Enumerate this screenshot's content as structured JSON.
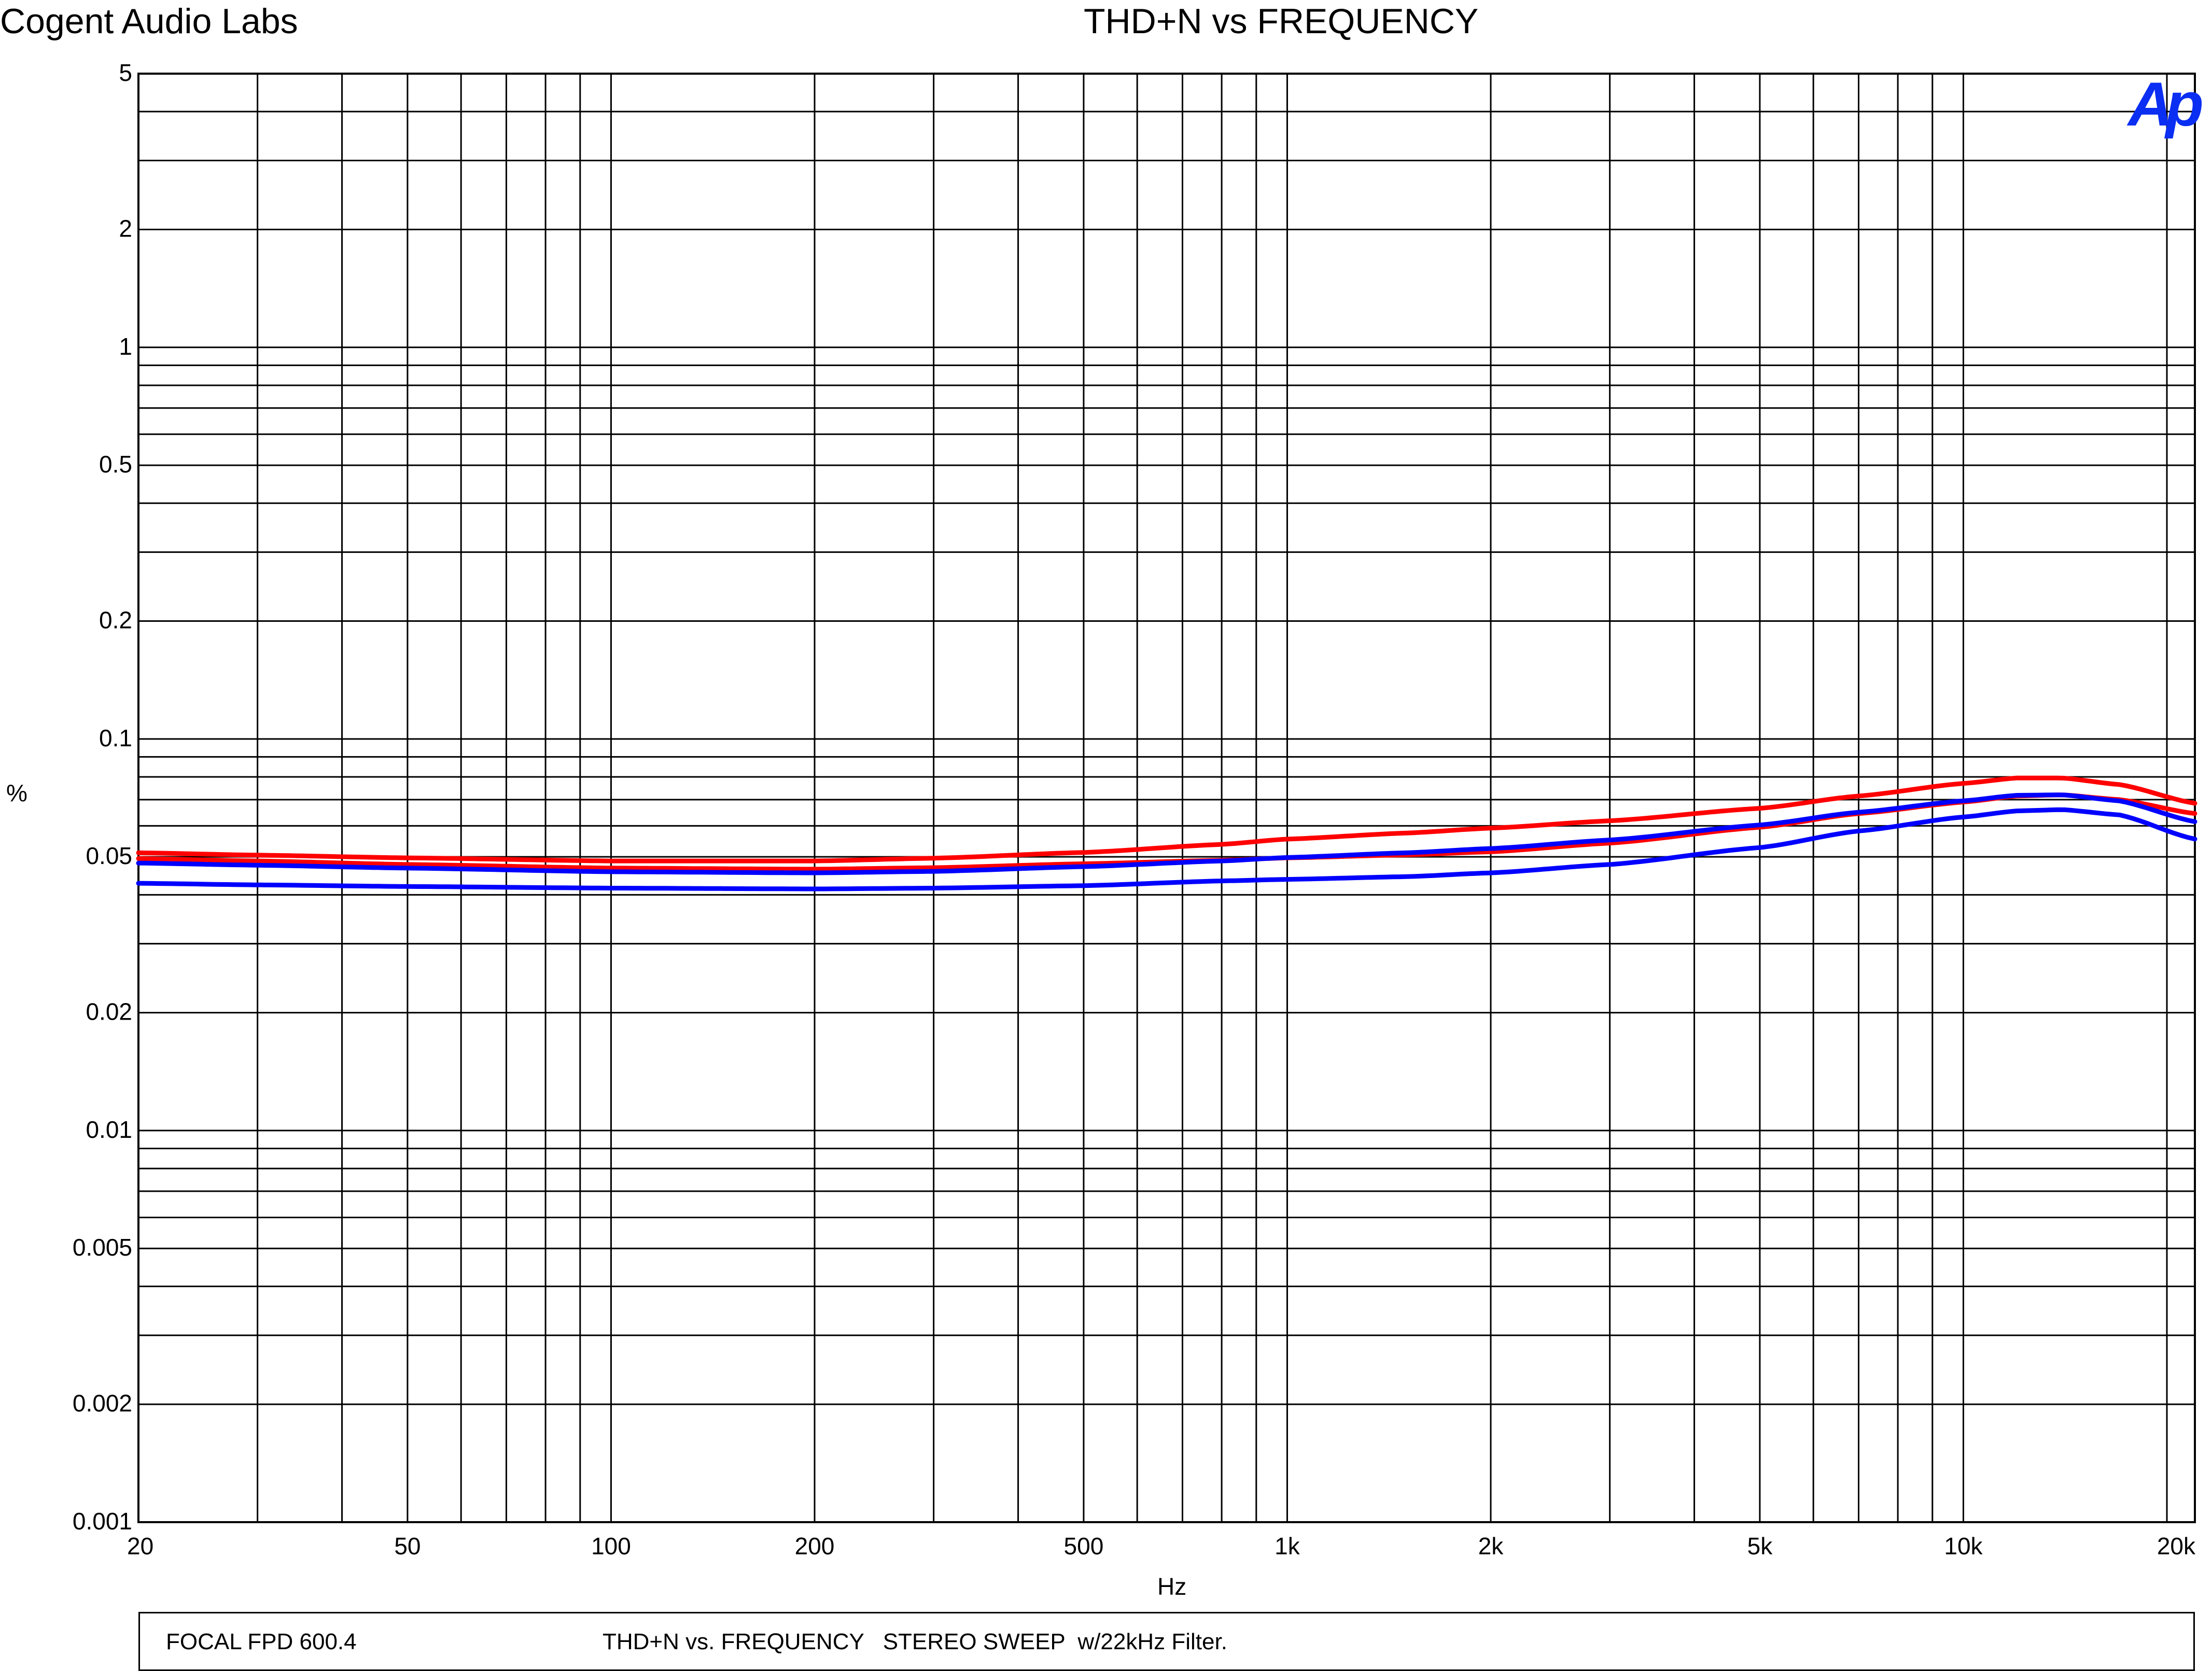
{
  "header": {
    "company": "Cogent Audio Labs",
    "title": "THD+N vs FREQUENCY"
  },
  "logo": {
    "text": "Ap",
    "color": "#0a2ef2"
  },
  "footer": {
    "device": "FOCAL FPD 600.4",
    "description": "THD+N vs. FREQUENCY   STEREO SWEEP  w/22kHz Filter."
  },
  "chart_data": {
    "type": "line",
    "title": "THD+N vs FREQUENCY",
    "xlabel": "Hz",
    "ylabel": "%",
    "xscale": "log",
    "yscale": "log",
    "xlim": [
      20,
      22000
    ],
    "ylim": [
      0.001,
      5
    ],
    "grid": true,
    "x_ticks": [
      {
        "value": 20,
        "label": "20"
      },
      {
        "value": 50,
        "label": "50"
      },
      {
        "value": 100,
        "label": "100"
      },
      {
        "value": 200,
        "label": "200"
      },
      {
        "value": 500,
        "label": "500"
      },
      {
        "value": 1000,
        "label": "1k"
      },
      {
        "value": 2000,
        "label": "2k"
      },
      {
        "value": 5000,
        "label": "5k"
      },
      {
        "value": 10000,
        "label": "10k"
      },
      {
        "value": 20000,
        "label": "20k"
      }
    ],
    "y_ticks": [
      {
        "value": 5,
        "label": "5"
      },
      {
        "value": 2,
        "label": "2"
      },
      {
        "value": 1,
        "label": "1"
      },
      {
        "value": 0.5,
        "label": "0.5"
      },
      {
        "value": 0.2,
        "label": "0.2"
      },
      {
        "value": 0.1,
        "label": "0.1"
      },
      {
        "value": 0.05,
        "label": "0.05"
      },
      {
        "value": 0.02,
        "label": "0.02"
      },
      {
        "value": 0.01,
        "label": "0.01"
      },
      {
        "value": 0.005,
        "label": "0.005"
      },
      {
        "value": 0.002,
        "label": "0.002"
      },
      {
        "value": 0.001,
        "label": "0.001"
      }
    ],
    "series": [
      {
        "color": "#ff0000",
        "x": [
          20,
          30,
          50,
          100,
          200,
          300,
          500,
          800,
          1000,
          1500,
          2000,
          3000,
          5000,
          7000,
          10000,
          12000,
          14000,
          17000,
          22000
        ],
        "y": [
          0.0512,
          0.0505,
          0.0497,
          0.0488,
          0.0488,
          0.0496,
          0.0513,
          0.0538,
          0.0555,
          0.0575,
          0.0592,
          0.0618,
          0.0665,
          0.0715,
          0.077,
          0.0795,
          0.0795,
          0.0765,
          0.0685
        ]
      },
      {
        "color": "#ff0000",
        "x": [
          20,
          30,
          50,
          100,
          200,
          300,
          500,
          800,
          1000,
          1500,
          2000,
          3000,
          5000,
          7000,
          10000,
          12000,
          14000,
          17000,
          22000
        ],
        "y": [
          0.0495,
          0.0488,
          0.0478,
          0.0468,
          0.0465,
          0.0469,
          0.048,
          0.049,
          0.0497,
          0.0506,
          0.0515,
          0.0542,
          0.0595,
          0.0645,
          0.069,
          0.0715,
          0.072,
          0.07,
          0.0645
        ]
      },
      {
        "color": "#0000ff",
        "x": [
          20,
          30,
          50,
          100,
          200,
          300,
          500,
          800,
          1000,
          1500,
          2000,
          3000,
          5000,
          7000,
          10000,
          12000,
          14000,
          17000,
          22000
        ],
        "y": [
          0.0482,
          0.0476,
          0.0468,
          0.0458,
          0.0455,
          0.0459,
          0.0472,
          0.0488,
          0.0498,
          0.0512,
          0.0525,
          0.0552,
          0.0603,
          0.065,
          0.0695,
          0.0718,
          0.072,
          0.0695,
          0.0615
        ]
      },
      {
        "color": "#0000ff",
        "x": [
          20,
          30,
          50,
          100,
          200,
          300,
          500,
          800,
          1000,
          1500,
          2000,
          3000,
          5000,
          7000,
          10000,
          12000,
          14000,
          17000,
          22000
        ],
        "y": [
          0.0428,
          0.0424,
          0.042,
          0.0416,
          0.0414,
          0.0416,
          0.0422,
          0.0434,
          0.0438,
          0.0445,
          0.0455,
          0.0478,
          0.0528,
          0.0582,
          0.0632,
          0.0655,
          0.066,
          0.064,
          0.0555
        ]
      }
    ]
  }
}
